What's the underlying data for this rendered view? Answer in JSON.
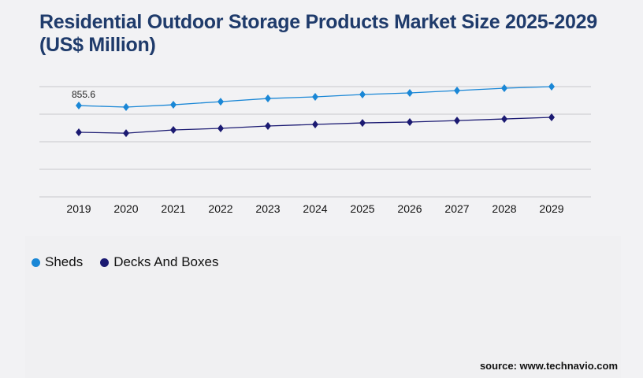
{
  "chart_data": {
    "type": "line",
    "title": "Residential Outdoor Storage Products Market Size 2025-2029 (US$ Million)",
    "categories": [
      "2019",
      "2020",
      "2021",
      "2022",
      "2023",
      "2024",
      "2025",
      "2026",
      "2027",
      "2028",
      "2029"
    ],
    "series": [
      {
        "name": "Sheds",
        "color": "#1a87d6",
        "values": [
          855.6,
          841,
          863,
          892,
          922,
          937,
          959,
          974,
          996,
          1018,
          1033
        ],
        "data_labels": [
          "855.6"
        ]
      },
      {
        "name": "Decks And Boxes",
        "color": "#1b1a72",
        "values": [
          605,
          597,
          627,
          642,
          664,
          679,
          693,
          701,
          715,
          730,
          745
        ]
      }
    ],
    "ylim": [
      0,
      1033
    ],
    "grid": true,
    "legend": "bottom-left",
    "xlabel": "",
    "ylabel": ""
  },
  "source": "source: www.technavio.com"
}
